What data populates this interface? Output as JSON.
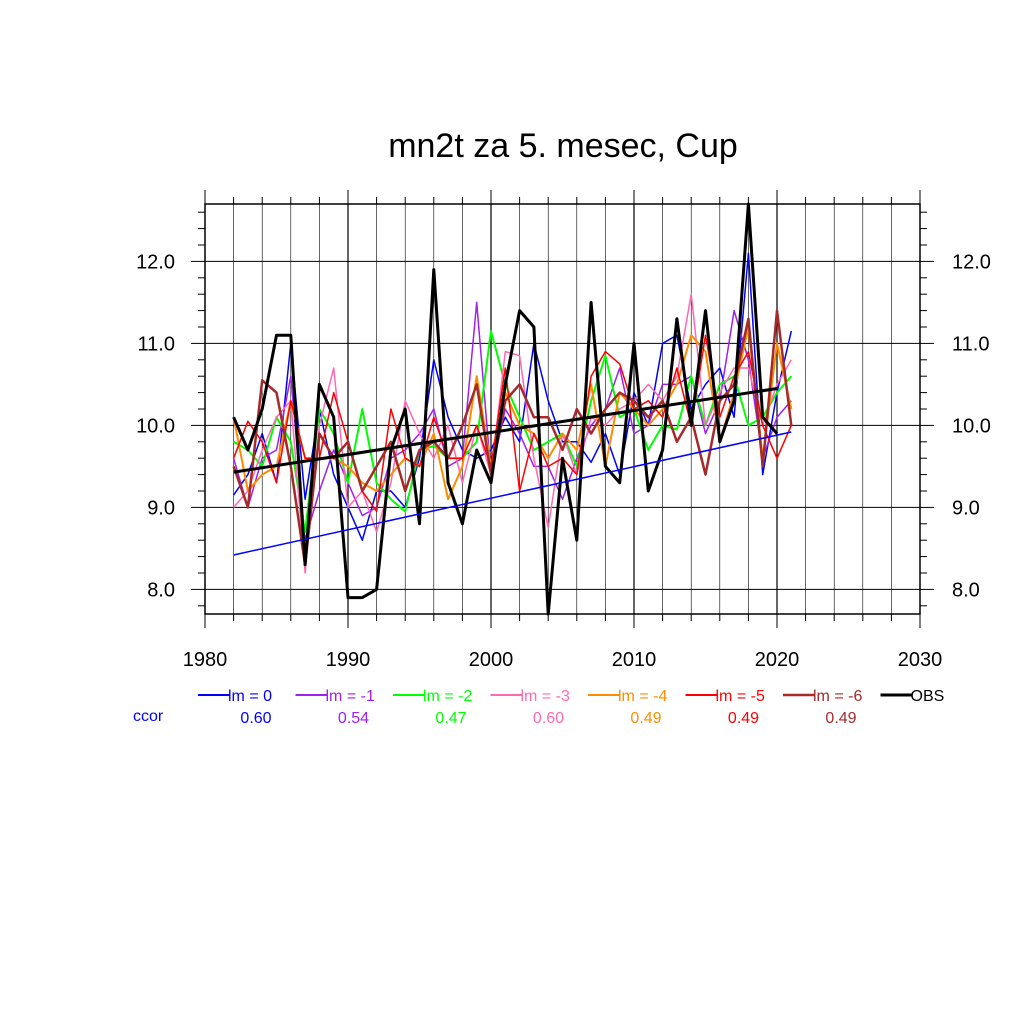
{
  "chart_data": {
    "type": "line",
    "title": "mn2t za 5. mesec, Cup",
    "xlabel": "",
    "ylabel": "",
    "xlim": [
      1980,
      2030
    ],
    "ylim": [
      7.7,
      12.7
    ],
    "x_ticks": [
      "1980",
      "1990",
      "2000",
      "2010",
      "2020",
      "2030"
    ],
    "y_ticks": [
      "8.0",
      "9.0",
      "10.0",
      "11.0",
      "12.0"
    ],
    "grid": true,
    "legend_position": "bottom",
    "ccor_label": "ccor",
    "x": [
      1982,
      1983,
      1984,
      1985,
      1986,
      1987,
      1988,
      1989,
      1990,
      1991,
      1992,
      1993,
      1994,
      1995,
      1996,
      1997,
      1998,
      1999,
      2000,
      2001,
      2002,
      2003,
      2004,
      2005,
      2006,
      2007,
      2008,
      2009,
      2010,
      2011,
      2012,
      2013,
      2014,
      2015,
      2016,
      2017,
      2018,
      2019,
      2020,
      2021
    ],
    "series": [
      {
        "name": "lm = 0",
        "color": "#0000ff",
        "ccor": "0.60",
        "width": 1.5,
        "values": [
          9.15,
          9.4,
          9.9,
          9.3,
          11.0,
          9.1,
          10.2,
          9.4,
          9.0,
          8.6,
          9.2,
          9.2,
          9.0,
          9.6,
          10.8,
          10.1,
          9.7,
          9.6,
          9.7,
          10.1,
          9.8,
          11.0,
          10.3,
          9.8,
          9.8,
          9.55,
          9.9,
          9.4,
          10.4,
          10.0,
          11.0,
          11.1,
          10.2,
          10.5,
          10.7,
          10.1,
          12.1,
          9.4,
          10.4,
          11.15
        ]
      },
      {
        "name": "lm = -1",
        "color": "#a020f0",
        "ccor": "0.54",
        "width": 1.5,
        "values": [
          9.6,
          9.0,
          9.6,
          9.7,
          10.6,
          8.6,
          9.2,
          9.7,
          9.3,
          8.9,
          9.0,
          9.6,
          9.7,
          9.9,
          10.2,
          9.5,
          9.6,
          11.5,
          9.4,
          10.2,
          9.9,
          9.5,
          9.5,
          9.1,
          9.6,
          10.0,
          10.2,
          10.7,
          9.9,
          10.0,
          10.5,
          10.5,
          10.6,
          9.9,
          10.3,
          11.4,
          10.8,
          9.6,
          10.1,
          10.3
        ]
      },
      {
        "name": "lm = -2",
        "color": "#00ff00",
        "ccor": "0.47",
        "width": 2,
        "values": [
          9.8,
          9.7,
          9.5,
          10.1,
          9.8,
          8.7,
          10.2,
          9.9,
          9.3,
          10.2,
          9.3,
          9.1,
          8.95,
          9.7,
          9.75,
          9.6,
          9.6,
          9.8,
          11.15,
          10.5,
          10.1,
          9.7,
          9.8,
          9.9,
          9.5,
          10.3,
          10.85,
          10.1,
          10.2,
          9.7,
          10.0,
          9.95,
          10.6,
          10.0,
          10.5,
          10.6,
          10.0,
          10.1,
          10.4,
          10.6
        ]
      },
      {
        "name": "lm = -3",
        "color": "#ff69b4",
        "ccor": "0.60",
        "width": 1.5,
        "values": [
          9.0,
          9.2,
          9.7,
          10.1,
          10.3,
          8.2,
          10.0,
          10.7,
          9.0,
          9.2,
          8.7,
          9.3,
          10.3,
          9.9,
          9.6,
          10.0,
          9.3,
          10.0,
          9.4,
          10.9,
          10.85,
          9.6,
          8.75,
          9.9,
          9.4,
          10.1,
          10.0,
          10.2,
          10.3,
          10.5,
          10.3,
          10.6,
          11.6,
          10.0,
          10.4,
          10.7,
          10.7,
          10.0,
          10.5,
          10.8
        ]
      },
      {
        "name": "lm = -4",
        "color": "#ff8c00",
        "ccor": "0.49",
        "width": 2,
        "values": [
          10.1,
          9.2,
          9.4,
          9.5,
          10.3,
          9.6,
          9.6,
          9.6,
          9.5,
          9.3,
          9.2,
          9.4,
          9.6,
          9.5,
          9.9,
          9.1,
          9.5,
          10.6,
          9.5,
          10.4,
          10.0,
          9.9,
          9.6,
          9.9,
          9.7,
          10.5,
          9.5,
          10.4,
          10.2,
          10.0,
          10.2,
          10.5,
          11.1,
          10.9,
          9.8,
          10.4,
          11.2,
          9.6,
          11.0,
          10.2
        ]
      },
      {
        "name": "lm = -5",
        "color": "#ff0000",
        "ccor": "0.49",
        "width": 1.5,
        "values": [
          9.6,
          10.05,
          9.8,
          9.3,
          10.3,
          9.6,
          9.6,
          10.4,
          9.8,
          9.2,
          8.95,
          10.2,
          9.6,
          9.5,
          10.1,
          9.6,
          9.6,
          10.0,
          9.5,
          10.7,
          9.2,
          9.9,
          9.5,
          9.6,
          9.4,
          10.6,
          10.9,
          10.75,
          10.2,
          10.3,
          10.1,
          10.7,
          10.0,
          11.1,
          10.1,
          10.6,
          10.9,
          10.0,
          9.6,
          10.0
        ]
      },
      {
        "name": "lm = -6",
        "color": "#a52a2a",
        "ccor": "0.49",
        "width": 2.5,
        "values": [
          9.5,
          9.0,
          10.55,
          10.4,
          9.5,
          8.3,
          9.9,
          9.6,
          9.8,
          9.2,
          9.5,
          9.8,
          9.2,
          9.7,
          9.8,
          9.6,
          10.0,
          10.5,
          9.4,
          10.3,
          10.5,
          10.1,
          10.1,
          9.7,
          10.2,
          9.9,
          10.2,
          10.4,
          10.3,
          10.1,
          10.3,
          9.8,
          10.1,
          9.4,
          10.3,
          10.5,
          11.3,
          9.5,
          11.4,
          10.0
        ]
      },
      {
        "name": "OBS",
        "color": "#000000",
        "ccor": "",
        "width": 3,
        "values": [
          10.1,
          9.7,
          10.2,
          11.1,
          11.1,
          8.3,
          10.5,
          10.1,
          7.9,
          7.9,
          8.0,
          9.7,
          10.2,
          8.8,
          11.9,
          9.3,
          8.8,
          9.7,
          9.3,
          10.5,
          11.4,
          11.2,
          7.7,
          9.6,
          8.6,
          11.5,
          9.5,
          9.3,
          11.0,
          9.2,
          9.7,
          11.3,
          10.0,
          11.4,
          9.8,
          10.3,
          12.7,
          10.1,
          9.9,
          null
        ]
      }
    ],
    "trend_lines": [
      {
        "series": "OBS",
        "color": "#000000",
        "width": 3,
        "x": [
          1982,
          2020
        ],
        "y": [
          9.43,
          10.45
        ]
      },
      {
        "series": "lm = 0",
        "color": "#0000ff",
        "width": 1.5,
        "x": [
          1982,
          2021
        ],
        "y": [
          8.42,
          9.92
        ]
      }
    ]
  }
}
